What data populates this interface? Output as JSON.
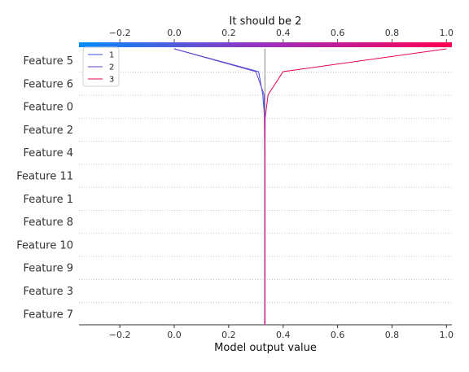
{
  "chart_data": {
    "type": "line",
    "chart_kind": "decision-plot",
    "title": "It should be 2",
    "xlabel": "Model output value",
    "ylabel": "",
    "xlim": [
      -0.35,
      1.02
    ],
    "x_ticks": [
      -0.2,
      0.0,
      0.2,
      0.4,
      0.6,
      0.8,
      1.0
    ],
    "x_tick_labels": [
      "−0.2",
      "0.0",
      "0.2",
      "0.4",
      "0.6",
      "0.8",
      "1.0"
    ],
    "base_value": 0.333,
    "features": [
      "Feature 5",
      "Feature 6",
      "Feature 0",
      "Feature 2",
      "Feature 4",
      "Feature 11",
      "Feature 1",
      "Feature 8",
      "Feature 10",
      "Feature 9",
      "Feature 3",
      "Feature 7"
    ],
    "legend": {
      "placement": "top-left"
    },
    "grid": "horizontal-dotted",
    "colorbar": {
      "from": "#008bfb",
      "mid": "#9b2fbf",
      "to": "#ff0051"
    },
    "series": [
      {
        "name": "1",
        "color": "#3a4fd8",
        "values": [
          0.0,
          0.31,
          0.325,
          0.332,
          0.333,
          0.333,
          0.333,
          0.333,
          0.333,
          0.333,
          0.333,
          0.333,
          0.333
        ]
      },
      {
        "name": "2",
        "color": "#6a3fcf",
        "values": [
          0.0,
          0.3,
          0.33,
          0.331,
          0.332,
          0.333,
          0.333,
          0.333,
          0.333,
          0.333,
          0.333,
          0.333,
          0.333
        ]
      },
      {
        "name": "3",
        "color": "#e8005c",
        "values": [
          1.0,
          0.4,
          0.345,
          0.334,
          0.333,
          0.333,
          0.333,
          0.333,
          0.333,
          0.333,
          0.333,
          0.333,
          0.333
        ]
      }
    ]
  }
}
